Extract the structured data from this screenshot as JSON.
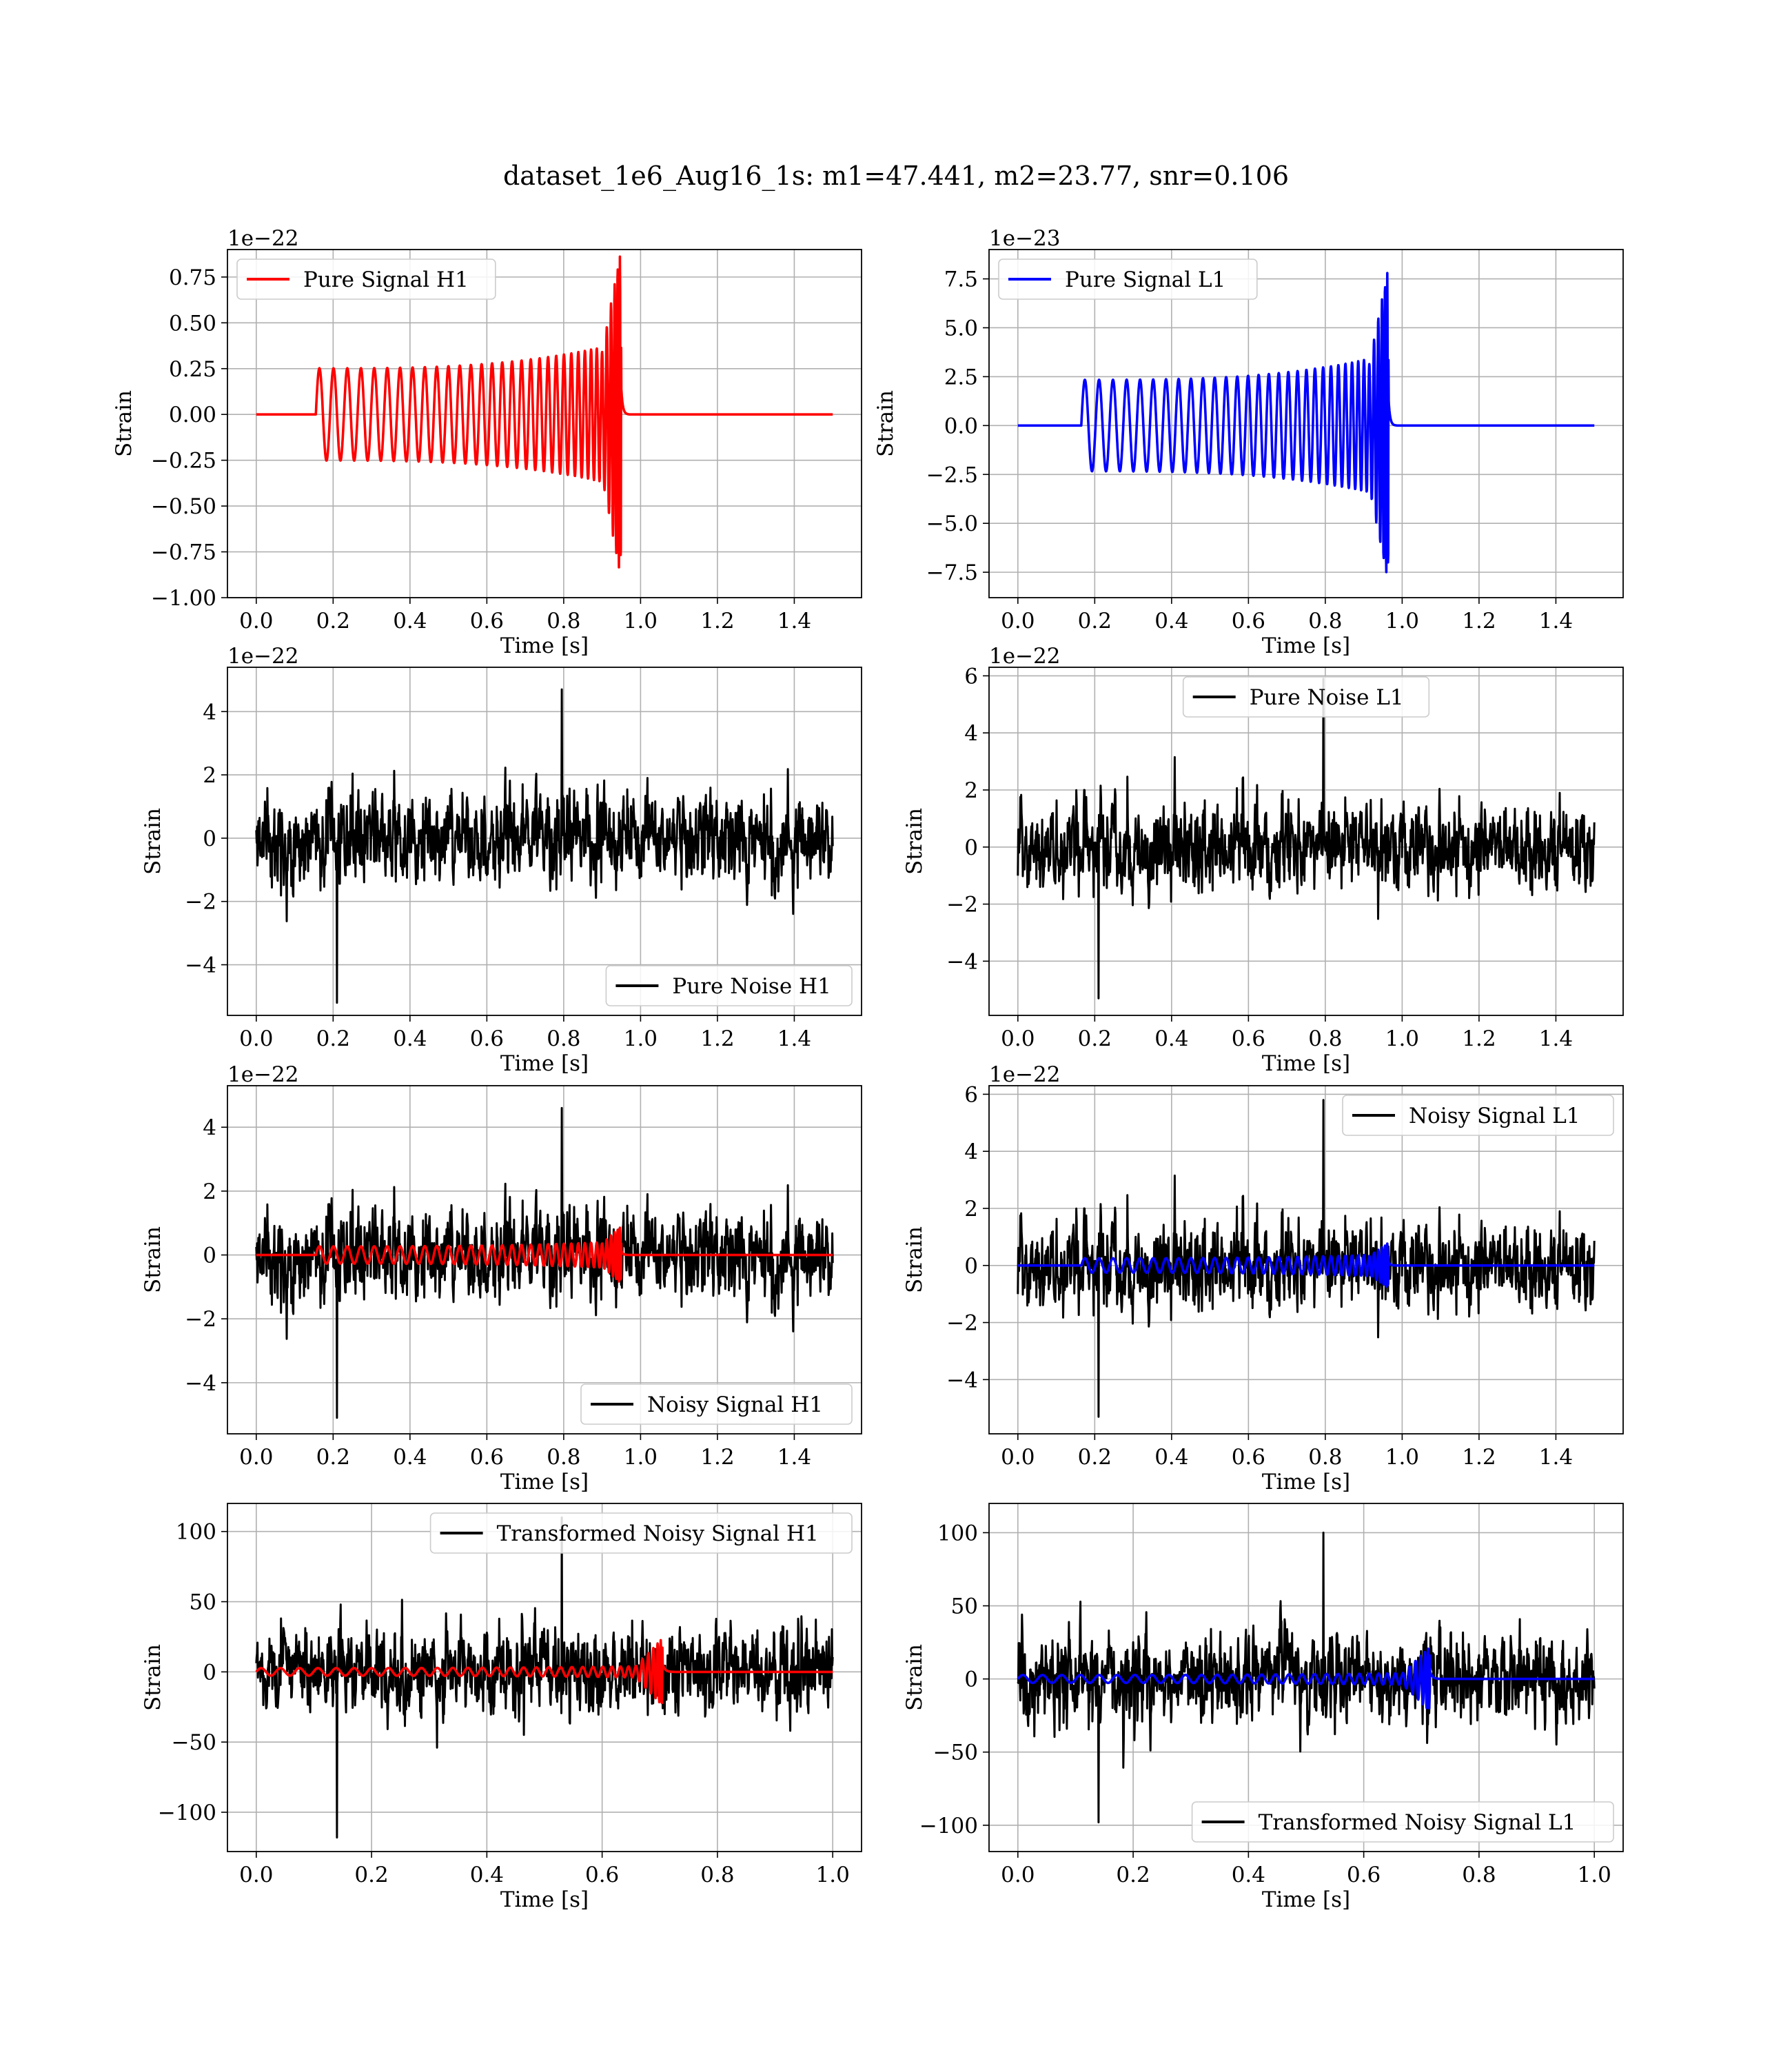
{
  "figure_title": "dataset_1e6_Aug16_1s: m1=47.441, m2=23.77, snr=0.106",
  "chart_data": [
    {
      "id": "pure-signal-h1",
      "type": "line",
      "title": "",
      "xlabel": "Time [s]",
      "ylabel": "Strain",
      "offset_label": "1e−22",
      "xlim": [
        -0.075,
        1.575
      ],
      "ylim": [
        -1.0,
        0.9
      ],
      "xticks": [
        "0.0",
        "0.2",
        "0.4",
        "0.6",
        "0.8",
        "1.0",
        "1.2",
        "1.4"
      ],
      "yticks": [
        "−1.00",
        "−0.75",
        "−0.50",
        "−0.25",
        "0.00",
        "0.25",
        "0.50",
        "0.75"
      ],
      "legend_loc": "upper-left",
      "series": [
        {
          "name": "Pure Signal H1",
          "kind": "chirp",
          "color": "#ff0000",
          "x_end": 1.5,
          "t_start": 0.155,
          "t_merge": 0.95,
          "amp": 0.28,
          "peak_pos": 0.86,
          "peak_neg": -0.91,
          "cycles": 34,
          "in_legend": true
        }
      ]
    },
    {
      "id": "pure-signal-l1",
      "type": "line",
      "title": "",
      "xlabel": "Time [s]",
      "ylabel": "Strain",
      "offset_label": "1e−23",
      "xlim": [
        -0.075,
        1.575
      ],
      "ylim": [
        -8.8,
        9.0
      ],
      "xticks": [
        "0.0",
        "0.2",
        "0.4",
        "0.6",
        "0.8",
        "1.0",
        "1.2",
        "1.4"
      ],
      "yticks": [
        "−7.5",
        "−5.0",
        "−2.5",
        "0.0",
        "2.5",
        "5.0",
        "7.5"
      ],
      "legend_loc": "upper-left",
      "series": [
        {
          "name": "Pure Signal L1",
          "kind": "chirp",
          "color": "#0000ff",
          "x_end": 1.5,
          "t_start": 0.165,
          "t_merge": 0.965,
          "amp": 2.6,
          "peak_pos": 8.2,
          "peak_neg": -8.1,
          "cycles": 34,
          "in_legend": true
        }
      ]
    },
    {
      "id": "pure-noise-h1",
      "type": "line",
      "title": "",
      "xlabel": "Time [s]",
      "ylabel": "Strain",
      "offset_label": "1e−22",
      "xlim": [
        -0.075,
        1.575
      ],
      "ylim": [
        -5.6,
        5.4
      ],
      "xticks": [
        "0.0",
        "0.2",
        "0.4",
        "0.6",
        "0.8",
        "1.0",
        "1.2",
        "1.4"
      ],
      "yticks": [
        "−4",
        "−2",
        "0",
        "2",
        "4"
      ],
      "legend_loc": "lower-right",
      "series": [
        {
          "name": "Pure Noise H1",
          "kind": "noise",
          "color": "#000000",
          "x_end": 1.5,
          "sigma": 1.4,
          "max": 4.7,
          "min": -5.2,
          "seed": 11,
          "in_legend": true
        }
      ]
    },
    {
      "id": "pure-noise-l1",
      "type": "line",
      "title": "",
      "xlabel": "Time [s]",
      "ylabel": "Strain",
      "offset_label": "1e−22",
      "xlim": [
        -0.075,
        1.575
      ],
      "ylim": [
        -5.9,
        6.3
      ],
      "xticks": [
        "0.0",
        "0.2",
        "0.4",
        "0.6",
        "0.8",
        "1.0",
        "1.2",
        "1.4"
      ],
      "yticks": [
        "−4",
        "−2",
        "0",
        "2",
        "4",
        "6"
      ],
      "legend_loc": "upper-center",
      "series": [
        {
          "name": "Pure Noise L1",
          "kind": "noise",
          "color": "#000000",
          "x_end": 1.5,
          "sigma": 1.5,
          "max": 5.9,
          "min": -5.3,
          "seed": 23,
          "in_legend": true
        }
      ]
    },
    {
      "id": "noisy-signal-h1",
      "type": "line",
      "title": "",
      "xlabel": "Time [s]",
      "ylabel": "Strain",
      "offset_label": "1e−22",
      "xlim": [
        -0.075,
        1.575
      ],
      "ylim": [
        -5.6,
        5.3
      ],
      "xticks": [
        "0.0",
        "0.2",
        "0.4",
        "0.6",
        "0.8",
        "1.0",
        "1.2",
        "1.4"
      ],
      "yticks": [
        "−4",
        "−2",
        "0",
        "2",
        "4"
      ],
      "legend_loc": "lower-right",
      "series": [
        {
          "name": "Noisy Signal H1",
          "kind": "noise",
          "color": "#000000",
          "x_end": 1.5,
          "sigma": 1.4,
          "max": 4.6,
          "min": -5.1,
          "seed": 11,
          "in_legend": true
        },
        {
          "name": "",
          "kind": "chirp",
          "color": "#ff0000",
          "x_end": 1.5,
          "t_start": 0.155,
          "t_merge": 0.95,
          "amp": 0.3,
          "peak_pos": 0.9,
          "peak_neg": -0.9,
          "cycles": 34,
          "in_legend": false
        }
      ]
    },
    {
      "id": "noisy-signal-l1",
      "type": "line",
      "title": "",
      "xlabel": "Time [s]",
      "ylabel": "Strain",
      "offset_label": "1e−22",
      "xlim": [
        -0.075,
        1.575
      ],
      "ylim": [
        -5.9,
        6.3
      ],
      "xticks": [
        "0.0",
        "0.2",
        "0.4",
        "0.6",
        "0.8",
        "1.0",
        "1.2",
        "1.4"
      ],
      "yticks": [
        "−4",
        "−2",
        "0",
        "2",
        "4",
        "6"
      ],
      "legend_loc": "upper-right",
      "series": [
        {
          "name": "Noisy Signal L1",
          "kind": "noise",
          "color": "#000000",
          "x_end": 1.5,
          "sigma": 1.5,
          "max": 5.8,
          "min": -5.3,
          "seed": 23,
          "in_legend": true
        },
        {
          "name": "",
          "kind": "chirp",
          "color": "#0000ff",
          "x_end": 1.5,
          "t_start": 0.165,
          "t_merge": 0.965,
          "amp": 0.28,
          "peak_pos": 0.8,
          "peak_neg": -0.8,
          "cycles": 34,
          "in_legend": false
        }
      ]
    },
    {
      "id": "transformed-noisy-signal-h1",
      "type": "line",
      "title": "",
      "xlabel": "Time [s]",
      "ylabel": "Strain",
      "offset_label": "",
      "xlim": [
        -0.05,
        1.05
      ],
      "ylim": [
        -128,
        120
      ],
      "xticks": [
        "0.0",
        "0.2",
        "0.4",
        "0.6",
        "0.8",
        "1.0"
      ],
      "yticks": [
        "−100",
        "−50",
        "0",
        "50",
        "100"
      ],
      "legend_loc": "upper-right",
      "series": [
        {
          "name": "Transformed Noisy Signal H1",
          "kind": "noise",
          "color": "#000000",
          "x_end": 1.0,
          "sigma": 30,
          "max": 110,
          "min": -118,
          "seed": 37,
          "in_legend": true
        },
        {
          "name": "",
          "kind": "chirp",
          "color": "#ff0000",
          "x_end": 1.0,
          "t_start": 0.0,
          "t_merge": 0.705,
          "amp": 3,
          "peak_pos": 22,
          "peak_neg": -24,
          "cycles": 33,
          "in_legend": false
        }
      ]
    },
    {
      "id": "transformed-noisy-signal-l1",
      "type": "line",
      "title": "",
      "xlabel": "Time [s]",
      "ylabel": "Strain",
      "offset_label": "",
      "xlim": [
        -0.05,
        1.05
      ],
      "ylim": [
        -118,
        120
      ],
      "xticks": [
        "0.0",
        "0.2",
        "0.4",
        "0.6",
        "0.8",
        "1.0"
      ],
      "yticks": [
        "−100",
        "−50",
        "0",
        "50",
        "100"
      ],
      "legend_loc": "lower-right",
      "series": [
        {
          "name": "Transformed Noisy Signal L1",
          "kind": "noise",
          "color": "#000000",
          "x_end": 1.0,
          "sigma": 30,
          "max": 100,
          "min": -98,
          "seed": 53,
          "in_legend": true
        },
        {
          "name": "",
          "kind": "chirp",
          "color": "#0000ff",
          "x_end": 1.0,
          "t_start": 0.0,
          "t_merge": 0.715,
          "amp": 3,
          "peak_pos": 22,
          "peak_neg": -22,
          "cycles": 33,
          "in_legend": false
        }
      ]
    }
  ]
}
